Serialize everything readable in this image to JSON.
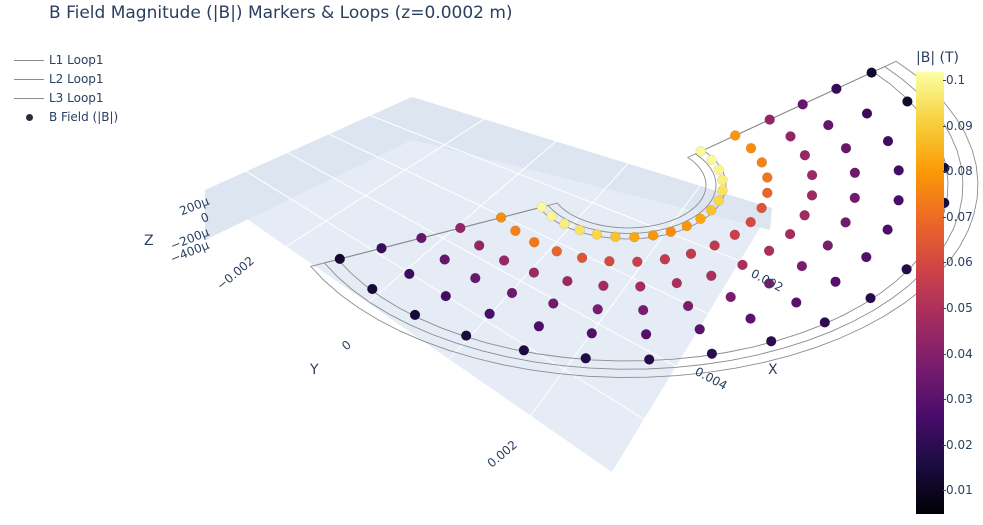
{
  "title": "B Field Magnitude (|B|) Markers & Loops (z=0.0002 m)",
  "legend": {
    "items": [
      {
        "label": "L1 Loop1",
        "kind": "line"
      },
      {
        "label": "L2 Loop1",
        "kind": "line"
      },
      {
        "label": "L3 Loop1",
        "kind": "line"
      },
      {
        "label": "B Field (|B|)",
        "kind": "marker"
      }
    ]
  },
  "colorbar": {
    "title": "|B| (T)",
    "ticks": [
      "0.1",
      "0.09",
      "0.08",
      "0.07",
      "0.06",
      "0.05",
      "0.04",
      "0.03",
      "0.02",
      "0.01"
    ],
    "colorscale": "inferno",
    "range": [
      0.005,
      0.102
    ]
  },
  "scene": {
    "x_axis": {
      "title": "X",
      "ticks": [
        "0.002",
        "0.004"
      ]
    },
    "y_axis": {
      "title": "Y",
      "ticks": [
        "−0.002",
        "0",
        "0.002"
      ]
    },
    "z_axis": {
      "title": "Z",
      "ticks": [
        "200μ",
        "0",
        "−200μ",
        "−400μ"
      ]
    },
    "background": "#e5ecf6"
  },
  "chart_data": {
    "type": "scatter",
    "title": "B Field Magnitude (|B|) Markers & Loops (z=0.0002 m)",
    "series": [
      {
        "name": "L1 Loop1",
        "type": "line",
        "description_inner_radius_index": 1
      },
      {
        "name": "L2 Loop1",
        "type": "line",
        "description_inner_radius_index": 2
      },
      {
        "name": "L3 Loop1",
        "type": "line",
        "description_inner_radius_index": 3
      },
      {
        "name": "B Field (|B|)",
        "type": "scatter3d",
        "rings": [
          {
            "ring": 1,
            "B_values": [
              0.1,
              0.1,
              0.098,
              0.095,
              0.09,
              0.085,
              0.08,
              0.075,
              0.072,
              0.07,
              0.072,
              0.075,
              0.08,
              0.085,
              0.09,
              0.095,
              0.098,
              0.1
            ]
          },
          {
            "ring": 2,
            "B_values": [
              0.072,
              0.07,
              0.068,
              0.066,
              0.062,
              0.058,
              0.055,
              0.052,
              0.05,
              0.05,
              0.05,
              0.052,
              0.055,
              0.058,
              0.062,
              0.066,
              0.068,
              0.07
            ]
          },
          {
            "ring": 3,
            "B_values": [
              0.04,
              0.04,
              0.041,
              0.042,
              0.042,
              0.043,
              0.044,
              0.045,
              0.045,
              0.045,
              0.045,
              0.044,
              0.043,
              0.042,
              0.042,
              0.041,
              0.04,
              0.04
            ]
          },
          {
            "ring": 4,
            "B_values": [
              0.03,
              0.03,
              0.031,
              0.032,
              0.033,
              0.033,
              0.034,
              0.034,
              0.035,
              0.035,
              0.035,
              0.034,
              0.034,
              0.033,
              0.032,
              0.031,
              0.03,
              0.03
            ]
          },
          {
            "ring": 5,
            "B_values": [
              0.02,
              0.021,
              0.022,
              0.023,
              0.024,
              0.025,
              0.026,
              0.027,
              0.028,
              0.028,
              0.028,
              0.027,
              0.026,
              0.025,
              0.024,
              0.023,
              0.022,
              0.021
            ]
          },
          {
            "ring": 6,
            "B_values": [
              0.012,
              0.012,
              0.013,
              0.013,
              0.014,
              0.015,
              0.016,
              0.017,
              0.018,
              0.018,
              0.018,
              0.017,
              0.016,
              0.015,
              0.014,
              0.013,
              0.013,
              0.012
            ]
          }
        ]
      }
    ],
    "xlabel": "X",
    "ylabel": "Y",
    "zlabel": "Z",
    "colorbar_title": "|B| (T)",
    "color_range": [
      0.005,
      0.102
    ],
    "legend_position": "top-left"
  }
}
